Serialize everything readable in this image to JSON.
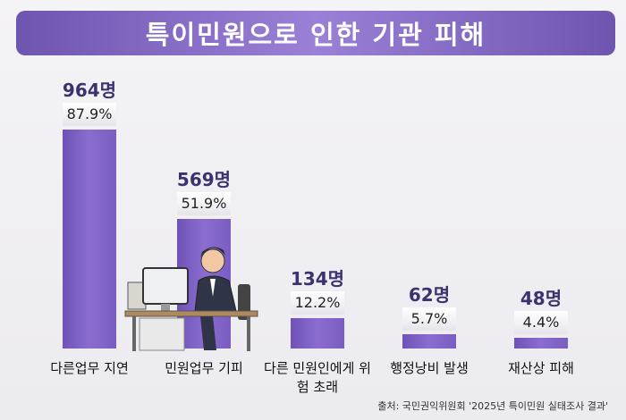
{
  "chart_data": {
    "type": "bar",
    "title": "특이민원으로 인한 기관 피해",
    "categories": [
      "다른업무 지연",
      "민원업무 기피",
      "다른 민원인에게 위험 초래",
      "행정낭비 발생",
      "재산상 피해"
    ],
    "values": [
      964,
      569,
      134,
      62,
      48
    ],
    "value_labels": [
      "964명",
      "569명",
      "134명",
      "62명",
      "48명"
    ],
    "shares": [
      87.9,
      51.9,
      12.2,
      5.7,
      4.4
    ],
    "share_labels": [
      "87.9%",
      "51.9%",
      "12.2%",
      "5.7%",
      "4.4%"
    ],
    "color": "#8a6dcf",
    "source": "출처: 국민권익위원회 '2025년 특이민원 실태조사 결과'"
  }
}
